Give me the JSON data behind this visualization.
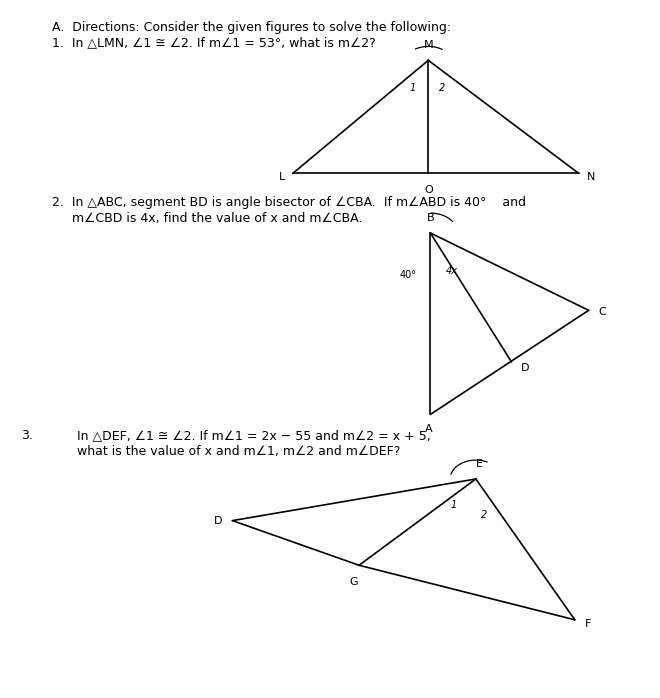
{
  "bg_color": "#ffffff",
  "title_line1": "A.  Directions: Consider the given figures to solve the following:",
  "title_line2": "1.  In △LMN, ∠1 ≅ ∠2. If m∠1 = 53°, what is m∠2?",
  "q2_line1": "2.  In △ABC, segment BD is angle bisector of ∠CBA.  If m∠ABD is 40°    and",
  "q2_line2": "     m∠CBD is 4x, find the value of x and m∠CBA.",
  "q3_num": "3.",
  "q3_line1": "In △DEF, ∠1 ≅ ∠2. If m∠1 = 2x − 55 and m∠2 = x + 5,",
  "q3_line2": "what is the value of x and m∠1, m∠2 and m∠DEF?",
  "font_size_text": 9,
  "font_size_label": 8,
  "line_color": "#000000",
  "text_color": "#000000"
}
